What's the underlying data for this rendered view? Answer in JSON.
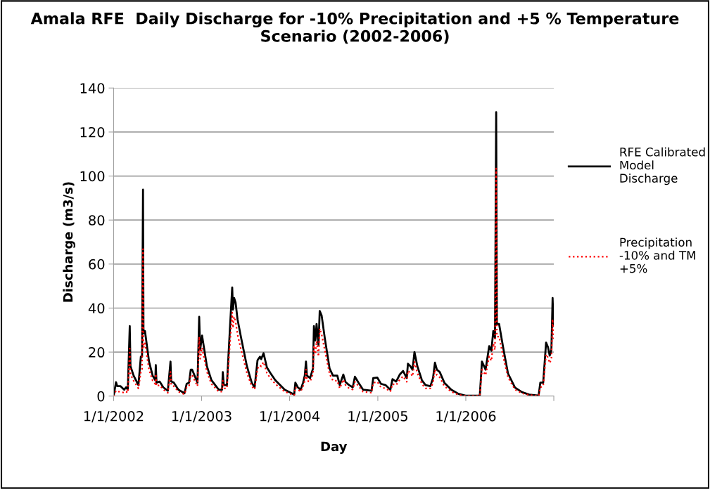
{
  "chart_data": {
    "type": "line",
    "title": "Amala RFE  Daily Discharge for -10% Precipitation and +5 % Temperature Scenario (2002-2006)",
    "xlabel": "Day",
    "ylabel": "Discharge (m3/s)",
    "x": [
      "2002-01-01",
      "2002-01-11",
      "2002-01-16",
      "2002-01-30",
      "2002-02-14",
      "2002-02-22",
      "2002-03-01",
      "2002-03-03",
      "2002-03-09",
      "2002-03-12",
      "2002-03-25",
      "2002-04-14",
      "2002-04-24",
      "2002-04-29",
      "2002-05-03",
      "2002-05-05",
      "2002-05-11",
      "2002-05-28",
      "2002-06-12",
      "2002-06-23",
      "2002-06-25",
      "2002-06-28",
      "2002-07-11",
      "2002-07-26",
      "2002-08-14",
      "2002-08-25",
      "2002-08-28",
      "2002-09-08",
      "2002-09-27",
      "2002-10-22",
      "2002-10-31",
      "2002-11-10",
      "2002-11-17",
      "2002-11-23",
      "2002-12-15",
      "2002-12-22",
      "2002-12-26",
      "2003-01-03",
      "2003-01-23",
      "2003-02-11",
      "2003-03-13",
      "2003-03-27",
      "2003-03-30",
      "2003-04-03",
      "2003-04-16",
      "2003-04-28",
      "2003-05-08",
      "2003-05-11",
      "2003-05-16",
      "2003-05-22",
      "2003-05-30",
      "2003-06-14",
      "2003-07-08",
      "2003-07-28",
      "2003-08-09",
      "2003-08-21",
      "2003-08-31",
      "2003-09-05",
      "2003-09-15",
      "2003-09-29",
      "2003-10-14",
      "2003-11-03",
      "2003-12-12",
      "2004-01-20",
      "2004-01-25",
      "2004-02-04",
      "2004-02-16",
      "2004-02-26",
      "2004-03-04",
      "2004-03-09",
      "2004-03-13",
      "2004-03-26",
      "2004-04-07",
      "2004-04-11",
      "2004-04-17",
      "2004-04-22",
      "2004-04-30",
      "2004-05-05",
      "2004-05-13",
      "2004-05-26",
      "2004-06-15",
      "2004-06-29",
      "2004-07-17",
      "2004-07-27",
      "2004-08-11",
      "2004-08-20",
      "2004-09-04",
      "2004-09-19",
      "2004-09-28",
      "2004-10-13",
      "2004-11-01",
      "2004-12-06",
      "2004-12-13",
      "2004-12-30",
      "2005-01-14",
      "2005-02-02",
      "2005-02-22",
      "2005-03-03",
      "2005-03-18",
      "2005-04-02",
      "2005-04-16",
      "2005-05-01",
      "2005-05-06",
      "2005-05-16",
      "2005-05-25",
      "2005-06-02",
      "2005-06-14",
      "2005-07-03",
      "2005-07-18",
      "2005-08-07",
      "2005-08-18",
      "2005-08-26",
      "2005-09-03",
      "2005-09-15",
      "2005-10-04",
      "2005-11-02",
      "2005-12-02",
      "2005-12-31",
      "2006-02-28",
      "2006-03-09",
      "2006-03-24",
      "2006-04-08",
      "2006-04-17",
      "2006-04-25",
      "2006-05-02",
      "2006-05-07",
      "2006-05-10",
      "2006-05-19",
      "2006-06-05",
      "2006-06-25",
      "2006-07-24",
      "2006-08-22",
      "2006-09-21",
      "2006-10-30",
      "2006-11-06",
      "2006-11-18",
      "2006-11-30",
      "2006-12-08",
      "2006-12-15",
      "2006-12-22",
      "2006-12-27",
      "2006-12-31"
    ],
    "series": [
      {
        "name": "RFE Calibrated Model Discharge",
        "color": "#000000",
        "line_style": "solid",
        "values": [
          0,
          6.3,
          4.5,
          4.5,
          2.9,
          4.0,
          2.9,
          10.4,
          31.8,
          13.6,
          9.3,
          5.0,
          17.9,
          17.9,
          93.8,
          28.6,
          29.6,
          15.7,
          9.3,
          7.2,
          14.1,
          6.1,
          6.6,
          4.0,
          2.4,
          15.7,
          6.6,
          6.1,
          2.9,
          1.3,
          5.6,
          6.1,
          12.0,
          12.0,
          6.1,
          36.0,
          21.0,
          27.5,
          13.6,
          7.2,
          2.9,
          2.9,
          10.9,
          5.0,
          5.0,
          29.6,
          49.4,
          39.3,
          44.6,
          42.5,
          35.0,
          26.4,
          13.6,
          6.1,
          4.0,
          16.3,
          17.9,
          16.8,
          19.5,
          13.0,
          10.4,
          7.2,
          2.9,
          0.7,
          6.1,
          4.0,
          2.9,
          6.1,
          9.3,
          15.7,
          9.3,
          8.2,
          12.5,
          31.8,
          25.3,
          32.8,
          23.2,
          38.7,
          36.6,
          26.4,
          12.5,
          9.3,
          9.3,
          5.0,
          9.8,
          6.4,
          5.0,
          4.0,
          8.8,
          6.1,
          2.9,
          2.4,
          8.2,
          8.4,
          5.6,
          5.0,
          2.9,
          7.7,
          6.6,
          9.8,
          11.4,
          8.2,
          14.7,
          13.6,
          12.0,
          20.0,
          13.6,
          7.2,
          5.0,
          4.5,
          8.2,
          15.2,
          12.0,
          10.9,
          6.1,
          2.9,
          1.0,
          0.2,
          0.2,
          15.7,
          12.0,
          22.7,
          20.6,
          29.6,
          26.4,
          129.0,
          32.8,
          32.8,
          22.0,
          10.3,
          3.9,
          1.8,
          0.7,
          0.2,
          6.1,
          6.1,
          24.3,
          22.2,
          18.4,
          21.0,
          44.6,
          31.8
        ]
      },
      {
        "name": "Precipitation -10% and TM +5%",
        "color": "#ff0000",
        "line_style": "dotted",
        "values": [
          0,
          2.4,
          2.0,
          2.0,
          1.5,
          2.0,
          1.5,
          6.0,
          21.6,
          10.0,
          7.0,
          3.5,
          11.0,
          12.0,
          66.8,
          22.0,
          24.0,
          12.0,
          7.0,
          5.5,
          10.0,
          4.5,
          5.0,
          3.0,
          1.5,
          11.0,
          5.0,
          4.5,
          2.0,
          0.8,
          4.0,
          4.5,
          9.5,
          9.5,
          4.5,
          27.0,
          17.0,
          22.0,
          11.0,
          5.5,
          2.0,
          2.0,
          7.0,
          3.5,
          3.5,
          23.0,
          38.0,
          31.0,
          36.0,
          34.0,
          28.0,
          21.0,
          10.5,
          4.5,
          3.0,
          12.5,
          14.0,
          13.5,
          15.5,
          10.5,
          8.0,
          5.5,
          2.0,
          0.4,
          4.0,
          3.0,
          2.0,
          4.5,
          7.0,
          12.0,
          7.0,
          6.5,
          10.0,
          23.0,
          19.0,
          25.0,
          18.0,
          30.7,
          28.0,
          21.0,
          10.0,
          7.0,
          7.0,
          3.5,
          7.5,
          5.0,
          3.5,
          3.0,
          6.5,
          4.5,
          2.0,
          1.5,
          6.0,
          6.5,
          4.0,
          3.5,
          2.0,
          5.5,
          5.0,
          7.5,
          9.0,
          6.5,
          11.5,
          10.5,
          9.0,
          15.5,
          10.5,
          5.5,
          3.5,
          3.5,
          6.0,
          12.0,
          9.5,
          8.5,
          4.5,
          2.0,
          0.6,
          0.1,
          0.1,
          12.0,
          9.5,
          18.0,
          16.0,
          24.0,
          21.0,
          103.4,
          27.0,
          27.0,
          18.0,
          8.5,
          3.0,
          1.3,
          0.5,
          0.1,
          4.0,
          4.5,
          19.0,
          17.5,
          15.0,
          17.0,
          35.0,
          26.0
        ]
      }
    ],
    "xlim": [
      "2002-01-01",
      "2007-01-01"
    ],
    "xticks": [
      {
        "value": "2002-01-01",
        "label": "1/1/2002"
      },
      {
        "value": "2003-01-01",
        "label": "1/1/2003"
      },
      {
        "value": "2004-01-01",
        "label": "1/1/2004"
      },
      {
        "value": "2005-01-01",
        "label": "1/1/2005"
      },
      {
        "value": "2006-01-01",
        "label": "1/1/2006"
      },
      {
        "value": "2007-01-01",
        "label": null
      }
    ],
    "ylim": [
      0,
      140
    ],
    "yticks": [
      0,
      20,
      40,
      60,
      80,
      100,
      120,
      140
    ],
    "grid": "y",
    "legend": "right",
    "marker": "none"
  }
}
